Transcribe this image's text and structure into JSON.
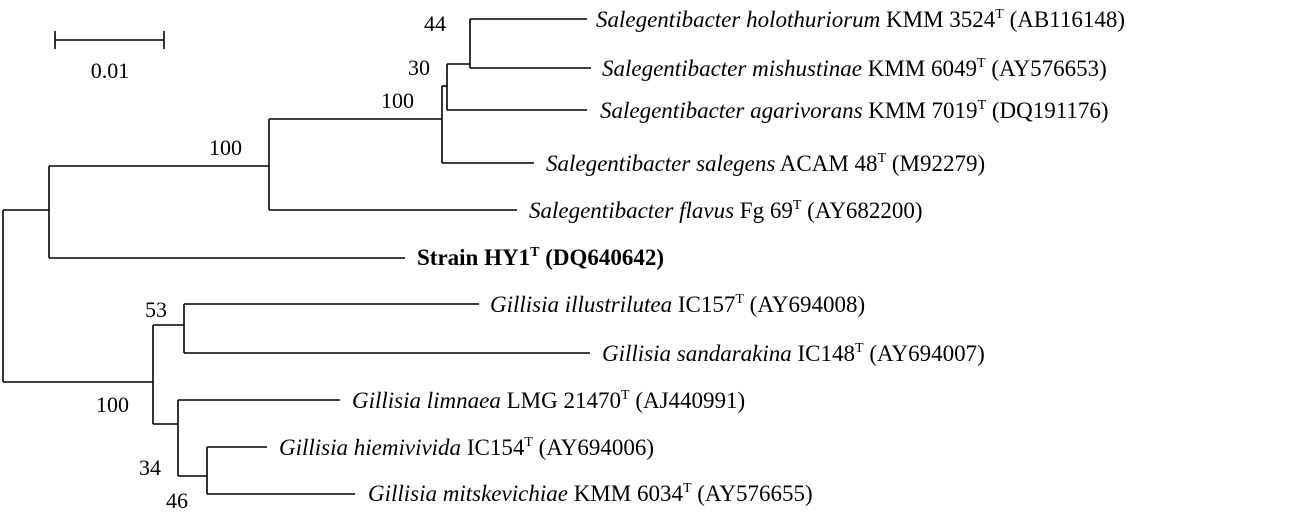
{
  "scale_bar": {
    "label": "0.01"
  },
  "taxa": [
    {
      "genus_species": "Salegentibacter holothuriorum",
      "strain": "KMM 3524",
      "sup": "T",
      "accession": "(AB116148)",
      "italic": true,
      "bold": false
    },
    {
      "genus_species": "Salegentibacter mishustinae",
      "strain": "KMM 6049",
      "sup": "T",
      "accession": "(AY576653)",
      "italic": true,
      "bold": false
    },
    {
      "genus_species": "Salegentibacter agarivorans",
      "strain": "KMM 7019",
      "sup": "T",
      "accession": "(DQ191176)",
      "italic": true,
      "bold": false
    },
    {
      "genus_species": "Salegentibacter salegens",
      "strain": "ACAM 48",
      "sup": "T",
      "accession": "(M92279)",
      "italic": true,
      "bold": false
    },
    {
      "genus_species": "Salegentibacter flavus",
      "strain": "Fg 69",
      "sup": "T",
      "accession": "(AY682200)",
      "italic": true,
      "bold": false
    },
    {
      "genus_species": "",
      "strain": "Strain HY1",
      "sup": "T",
      "accession": "(DQ640642)",
      "italic": false,
      "bold": true
    },
    {
      "genus_species": "Gillisia illustrilutea",
      "strain": "IC157",
      "sup": "T",
      "accession": "(AY694008)",
      "italic": true,
      "bold": false
    },
    {
      "genus_species": "Gillisia sandarakina",
      "strain": "IC148",
      "sup": "T",
      "accession": "(AY694007)",
      "italic": true,
      "bold": false
    },
    {
      "genus_species": "Gillisia limnaea",
      "strain": "LMG 21470",
      "sup": "T",
      "accession": "(AJ440991)",
      "italic": true,
      "bold": false
    },
    {
      "genus_species": "Gillisia hiemivivida",
      "strain": "IC154",
      "sup": "T",
      "accession": "(AY694006)",
      "italic": true,
      "bold": false
    },
    {
      "genus_species": "Gillisia mitskevichiae",
      "strain": "KMM 6034",
      "sup": "T",
      "accession": "(AY576655)",
      "italic": true,
      "bold": false
    }
  ],
  "bootstrap": [
    "44",
    "30",
    "100",
    "100",
    "53",
    "100",
    "34",
    "46"
  ]
}
